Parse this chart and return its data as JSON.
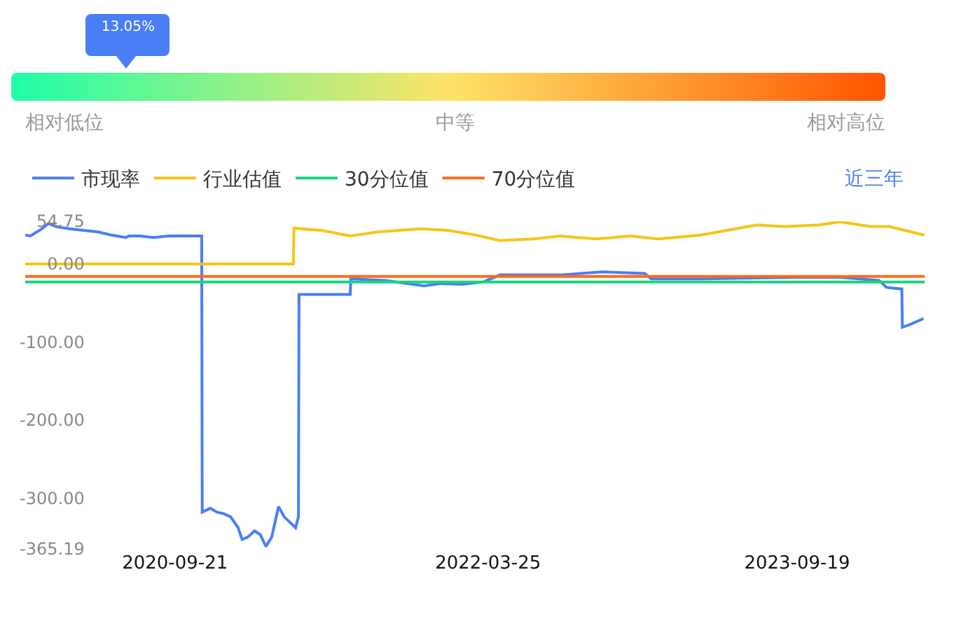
{
  "chart_data": [
    {
      "type": "other",
      "values": [
        13.05
      ],
      "value_labels": [
        "13.05%"
      ],
      "annotations": [
        "相对低位",
        "中等",
        "相对高位"
      ]
    },
    {
      "type": "line",
      "x": [
        "2020-01-02",
        "2020-01-11",
        "2020-01-31",
        "2020-02-12",
        "2020-02-25",
        "2020-03-20",
        "2020-04-14",
        "2020-05-09",
        "2020-06-02",
        "2020-06-27",
        "2020-07-02",
        "2020-07-21",
        "2020-08-15",
        "2020-09-09",
        "2020-10-03",
        "2020-10-28",
        "2020-11-07",
        "2020-11-08",
        "2020-11-22",
        "2020-12-04",
        "2020-12-16",
        "2020-12-28",
        "2021-01-10",
        "2021-01-17",
        "2021-01-27",
        "2021-02-08",
        "2021-02-18",
        "2021-02-28",
        "2021-03-10",
        "2021-03-22",
        "2021-04-01",
        "2021-04-11",
        "2021-04-21",
        "2021-04-26",
        "2021-04-27",
        "2021-07-26",
        "2021-07-27",
        "2021-09-25",
        "2021-12-03",
        "2022-01-02",
        "2022-02-08",
        "2022-03-17",
        "2022-04-15",
        "2022-07-30",
        "2022-10-12",
        "2022-12-25",
        "2023-01-06",
        "2023-04-02",
        "2023-09-21",
        "2023-12-03",
        "2024-02-10",
        "2024-02-23",
        "2024-03-21",
        "2024-03-22",
        "2024-04-03",
        "2024-04-28"
      ],
      "legend": "top left",
      "grid": false,
      "marker": "none",
      "line_style": "solid",
      "ylim": [
        -365.19,
        54.75
      ],
      "yticks": [
        {
          "value": 54.75,
          "label": "54.75"
        },
        {
          "value": 0,
          "label": "0.00"
        },
        {
          "value": -100,
          "label": "-100.00"
        },
        {
          "value": -200,
          "label": "-200.00"
        },
        {
          "value": -300,
          "label": "-300.00"
        },
        {
          "value": -365.19,
          "label": "-365.19"
        }
      ],
      "xlim": [
        "2020-01-02",
        "2024-04-30"
      ],
      "xticks": [
        {
          "value": "2020-09-21",
          "label": "2020-09-21"
        },
        {
          "value": "2022-03-25",
          "label": "2022-03-25"
        },
        {
          "value": "2023-09-19",
          "label": "2023-09-19"
        }
      ],
      "annotations": [
        "近三年"
      ],
      "series": [
        {
          "name": "市现率",
          "color": "#4a7ef5",
          "values": [
            37,
            36,
            45,
            52,
            48,
            45,
            43,
            41,
            37,
            34,
            36,
            36,
            34,
            36,
            36,
            36,
            36,
            -318,
            -313,
            -318,
            -320,
            -324,
            -338,
            -353,
            -350,
            -342,
            -347,
            -362,
            -350,
            -311,
            -324,
            -331,
            -338,
            -324,
            -39,
            -39,
            -19,
            -21,
            -28,
            -25,
            -26,
            -23,
            -14,
            -14,
            -10,
            -12,
            -19,
            -19,
            -17,
            -17,
            -21,
            -30,
            -32,
            -81,
            -78,
            -70
          ]
        },
        {
          "name": "行业估值",
          "color": "#f5c518",
          "x": [
            "2020-01-02",
            "2021-04-17",
            "2021-04-18",
            "2021-04-30",
            "2021-06-06",
            "2021-07-26",
            "2021-09-13",
            "2021-11-26",
            "2022-01-14",
            "2022-03-04",
            "2022-04-15",
            "2022-06-11",
            "2022-07-30",
            "2022-09-30",
            "2022-11-30",
            "2023-01-18",
            "2023-04-02",
            "2023-07-10",
            "2023-08-28",
            "2023-10-28",
            "2023-12-03",
            "2024-01-26",
            "2024-02-28",
            "2024-04-30"
          ],
          "values": [
            0,
            0,
            46,
            45,
            43,
            36,
            41,
            45,
            43,
            37,
            30,
            32,
            36,
            32,
            36,
            32,
            37,
            50,
            48,
            50,
            54,
            48,
            48,
            37
          ]
        },
        {
          "name": "30分位值",
          "color": "#19d47f",
          "x": [
            "2020-01-02",
            "2024-04-30"
          ],
          "values": [
            -23,
            -23
          ]
        },
        {
          "name": "70分位值",
          "color": "#ff6a1a",
          "x": [
            "2020-01-02",
            "2024-04-30"
          ],
          "values": [
            -16,
            -16
          ]
        }
      ]
    }
  ]
}
